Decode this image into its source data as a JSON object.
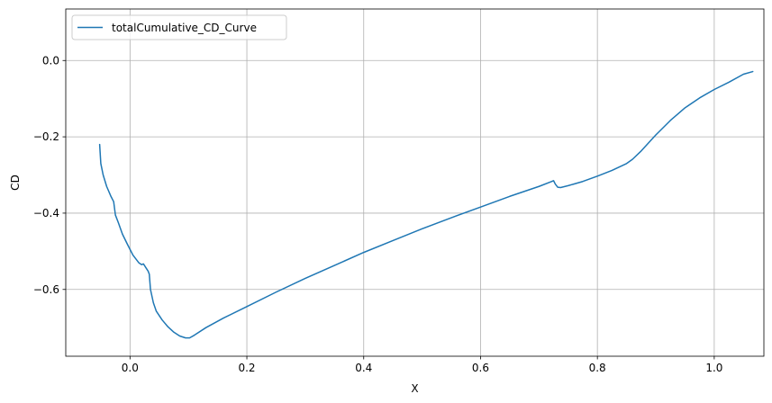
{
  "chart_data": {
    "type": "line",
    "xlabel": "X",
    "ylabel": "CD",
    "xlim": [
      -0.11,
      1.085
    ],
    "ylim": [
      -0.775,
      0.135
    ],
    "xticks": [
      0.0,
      0.2,
      0.4,
      0.6,
      0.8,
      1.0
    ],
    "xtick_labels": [
      "0.0",
      "0.2",
      "0.4",
      "0.6",
      "0.8",
      "1.0"
    ],
    "yticks": [
      -0.6,
      -0.4,
      -0.2,
      0.0
    ],
    "ytick_labels": [
      "−0.6",
      "−0.4",
      "−0.2",
      "0.0"
    ],
    "grid": true,
    "legend_position": "top-left",
    "series": [
      {
        "name": "totalCumulative_CD_Curve",
        "color": "#1f77b4",
        "points": [
          [
            -0.052,
            -0.22
          ],
          [
            -0.05,
            -0.27
          ],
          [
            -0.046,
            -0.3
          ],
          [
            -0.04,
            -0.33
          ],
          [
            -0.033,
            -0.355
          ],
          [
            -0.028,
            -0.37
          ],
          [
            -0.025,
            -0.405
          ],
          [
            -0.02,
            -0.425
          ],
          [
            -0.013,
            -0.455
          ],
          [
            -0.005,
            -0.48
          ],
          [
            0.0,
            -0.495
          ],
          [
            0.005,
            -0.51
          ],
          [
            0.01,
            -0.52
          ],
          [
            0.015,
            -0.53
          ],
          [
            0.02,
            -0.535
          ],
          [
            0.023,
            -0.533
          ],
          [
            0.028,
            -0.545
          ],
          [
            0.031,
            -0.552
          ],
          [
            0.033,
            -0.56
          ],
          [
            0.035,
            -0.6
          ],
          [
            0.04,
            -0.635
          ],
          [
            0.045,
            -0.657
          ],
          [
            0.055,
            -0.68
          ],
          [
            0.065,
            -0.698
          ],
          [
            0.075,
            -0.712
          ],
          [
            0.085,
            -0.722
          ],
          [
            0.095,
            -0.727
          ],
          [
            0.102,
            -0.727
          ],
          [
            0.11,
            -0.72
          ],
          [
            0.13,
            -0.7
          ],
          [
            0.16,
            -0.675
          ],
          [
            0.2,
            -0.645
          ],
          [
            0.25,
            -0.607
          ],
          [
            0.3,
            -0.571
          ],
          [
            0.35,
            -0.537
          ],
          [
            0.4,
            -0.503
          ],
          [
            0.45,
            -0.472
          ],
          [
            0.5,
            -0.441
          ],
          [
            0.55,
            -0.412
          ],
          [
            0.6,
            -0.384
          ],
          [
            0.65,
            -0.356
          ],
          [
            0.7,
            -0.33
          ],
          [
            0.72,
            -0.318
          ],
          [
            0.725,
            -0.315
          ],
          [
            0.728,
            -0.324
          ],
          [
            0.732,
            -0.332
          ],
          [
            0.737,
            -0.333
          ],
          [
            0.75,
            -0.328
          ],
          [
            0.775,
            -0.317
          ],
          [
            0.8,
            -0.303
          ],
          [
            0.825,
            -0.288
          ],
          [
            0.85,
            -0.27
          ],
          [
            0.86,
            -0.259
          ],
          [
            0.875,
            -0.237
          ],
          [
            0.9,
            -0.195
          ],
          [
            0.925,
            -0.157
          ],
          [
            0.95,
            -0.124
          ],
          [
            0.975,
            -0.098
          ],
          [
            1.0,
            -0.076
          ],
          [
            1.025,
            -0.057
          ],
          [
            1.05,
            -0.036
          ],
          [
            1.066,
            -0.029
          ]
        ]
      }
    ]
  }
}
